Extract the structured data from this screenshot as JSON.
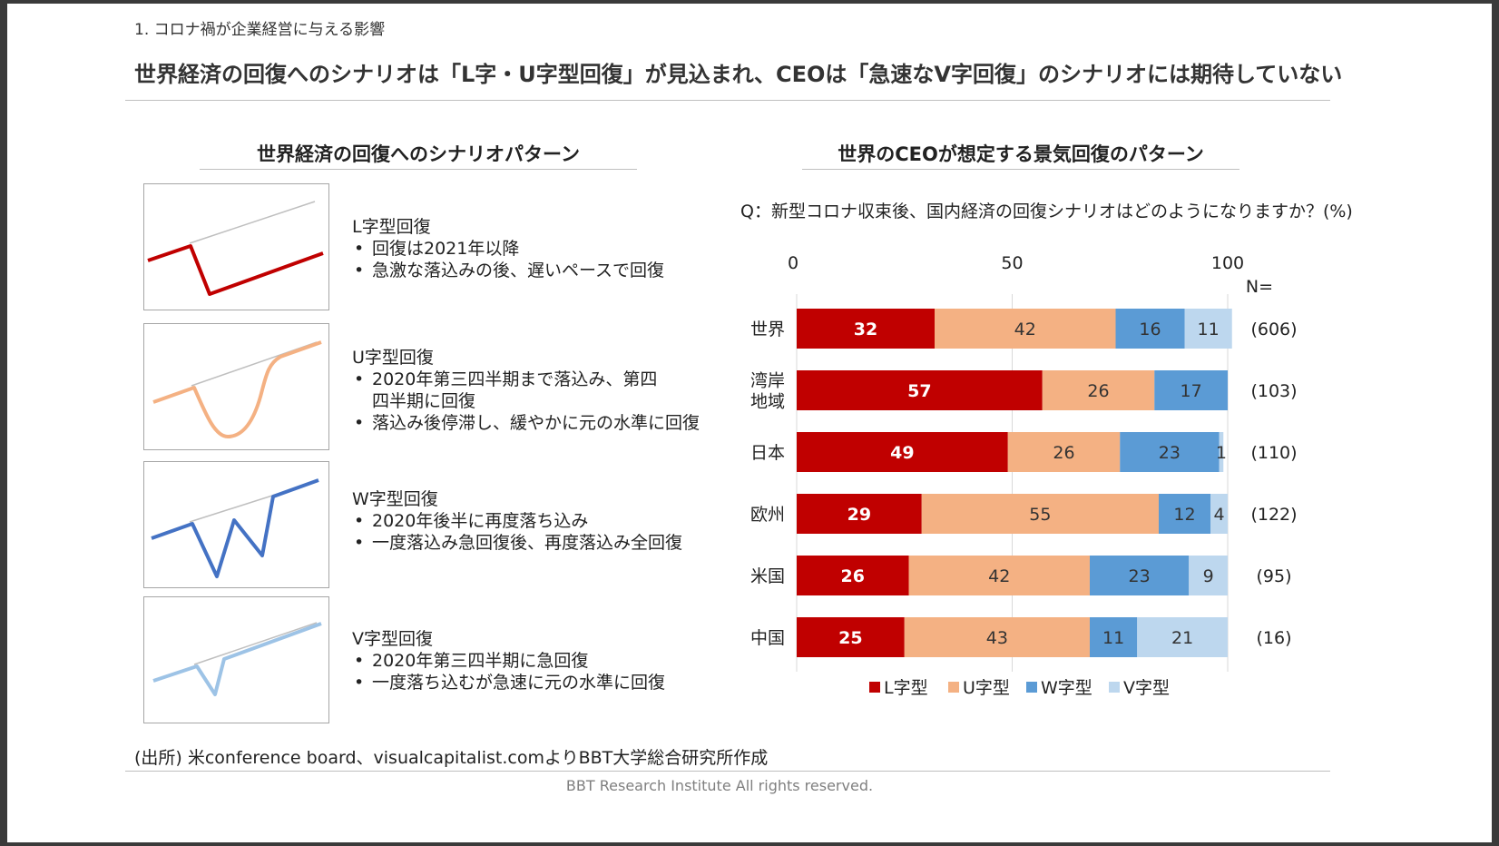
{
  "section_label": "1. コロナ禍が企業経営に与える影響",
  "title": "世界経済の回復へのシナリオは「L字・U字型回復」が見込まれ、CEOは「急速なV字回復」のシナリオには期待していない",
  "left_panel": {
    "title": "世界経済の回復へのシナリオパターン",
    "patterns": [
      {
        "name": "L字型回復",
        "color": "#c00000",
        "bullets": [
          "回復は2021年以降",
          "急激な落込みの後、遅いペースで回復"
        ]
      },
      {
        "name": "U字型回復",
        "color": "#f4b183",
        "bullets": [
          "2020年第三四半期まで落込み、第四四半期に回復",
          "落込み後停滞し、緩やかに元の水準に回復"
        ]
      },
      {
        "name": "W字型回復",
        "color": "#4472c4",
        "bullets": [
          "2020年後半に再度落ち込み",
          "一度落込み急回復後、再度落込み全回復"
        ]
      },
      {
        "name": "V字型回復",
        "color": "#9dc3e6",
        "bullets": [
          "2020年第三四半期に急回復",
          "一度落ち込むが急速に元の水準に回復"
        ]
      }
    ]
  },
  "right_panel": {
    "title": "世界のCEOが想定する景気回復のパターン",
    "question": "Q：新型コロナ収束後、国内経済の回復シナリオはどのようになりますか？(%)",
    "n_header": "N="
  },
  "chart_data": {
    "type": "bar",
    "orientation": "horizontal",
    "stacked": true,
    "unit": "%",
    "xlim": [
      0,
      100
    ],
    "x_ticks": [
      "0",
      "50",
      "100"
    ],
    "grid": true,
    "legend_position": "bottom",
    "categories": [
      "世界",
      "湾岸\n地域",
      "日本",
      "欧州",
      "米国",
      "中国"
    ],
    "n_labels": [
      "(606)",
      "(103)",
      "(110)",
      "(122)",
      "(95)",
      "(16)"
    ],
    "series": [
      {
        "name": "L字型",
        "color": "#c00000",
        "label_color": "#ffffff",
        "values": [
          32,
          57,
          49,
          29,
          26,
          25
        ]
      },
      {
        "name": "U字型",
        "color": "#f4b183",
        "label_color": "#333333",
        "values": [
          42,
          26,
          26,
          55,
          42,
          43
        ]
      },
      {
        "name": "W字型",
        "color": "#5b9bd5",
        "label_color": "#333333",
        "values": [
          16,
          17,
          23,
          12,
          23,
          11
        ]
      },
      {
        "name": "V字型",
        "color": "#bdd7ee",
        "label_color": "#333333",
        "values": [
          11,
          0,
          1,
          4,
          9,
          21
        ]
      }
    ]
  },
  "source": "(出所) 米conference board、visualcapitalist.comよりBBT大学総合研究所作成",
  "copyright": "BBT Research Institute All rights reserved."
}
